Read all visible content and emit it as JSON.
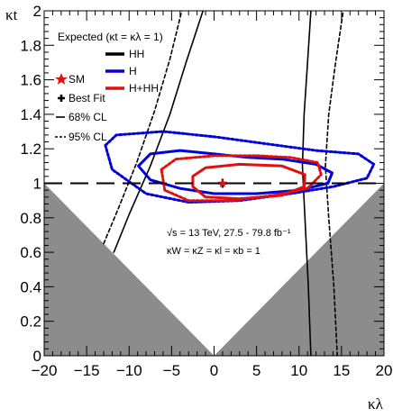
{
  "chart_data": {
    "type": "contour",
    "title": "",
    "xlabel": "κλ",
    "ylabel": "κt",
    "xlim": [
      -20,
      20
    ],
    "ylim": [
      0,
      2
    ],
    "x_ticks": [
      -20,
      -15,
      -10,
      -5,
      0,
      5,
      10,
      15,
      20
    ],
    "y_ticks": [
      0,
      0.2,
      0.4,
      0.6,
      0.8,
      1,
      1.2,
      1.4,
      1.6,
      1.8,
      2
    ],
    "x_tick_labels": [
      "−20",
      "−15",
      "−10",
      "−5",
      "0",
      "5",
      "10",
      "15",
      "20"
    ],
    "y_tick_labels": [
      "0",
      "0.2",
      "0.4",
      "0.6",
      "0.8",
      "1",
      "1.2",
      "1.4",
      "1.6",
      "1.8",
      "2"
    ],
    "reference_line_y": 1,
    "sm_point": {
      "x": 1,
      "y": 1
    },
    "best_fit_point": {
      "x": 1,
      "y": 1
    },
    "excluded_region": "κt < |κλ|/20 (grey)",
    "series": [
      {
        "name": "HH",
        "color": "#000000",
        "cl68": [
          {
            "branch": "left",
            "points": [
              [
                -11.8,
                0.6
              ],
              [
                -10,
                0.82
              ],
              [
                -7.5,
                1.1
              ],
              [
                -5.2,
                1.4
              ],
              [
                -3.3,
                1.7
              ],
              [
                -1.3,
                2.0
              ]
            ]
          },
          {
            "branch": "right",
            "points": [
              [
                11.4,
                0.0
              ],
              [
                11.1,
                0.4
              ],
              [
                10.7,
                0.8
              ],
              [
                10.4,
                1.1
              ],
              [
                10.6,
                1.4
              ],
              [
                11.0,
                1.7
              ],
              [
                11.4,
                2.0
              ]
            ]
          }
        ],
        "cl95": [
          {
            "branch": "left",
            "points": [
              [
                -13.0,
                0.65
              ],
              [
                -11.3,
                0.85
              ],
              [
                -9.1,
                1.12
              ],
              [
                -7.0,
                1.42
              ],
              [
                -5.2,
                1.72
              ],
              [
                -3.8,
                2.0
              ]
            ]
          },
          {
            "branch": "right",
            "points": [
              [
                14.5,
                0.0
              ],
              [
                14.1,
                0.4
              ],
              [
                13.5,
                0.8
              ],
              [
                13.1,
                1.1
              ],
              [
                13.5,
                1.4
              ],
              [
                14.3,
                1.7
              ],
              [
                15.2,
                2.0
              ]
            ]
          }
        ]
      },
      {
        "name": "H",
        "color": "#0000dd",
        "cl68": [
          [
            -8.9,
            1.1
          ],
          [
            -7.5,
            1.17
          ],
          [
            -4,
            1.19
          ],
          [
            0,
            1.17
          ],
          [
            4,
            1.15
          ],
          [
            8,
            1.14
          ],
          [
            12,
            1.11
          ],
          [
            13.9,
            1.06
          ],
          [
            13.4,
            1.0
          ],
          [
            10,
            0.96
          ],
          [
            5,
            0.94
          ],
          [
            0,
            0.94
          ],
          [
            -4,
            0.97
          ],
          [
            -7.5,
            1.02
          ],
          [
            -8.9,
            1.1
          ]
        ],
        "cl95": [
          [
            -12.8,
            1.22
          ],
          [
            -11.5,
            1.28
          ],
          [
            -6,
            1.3
          ],
          [
            0,
            1.27
          ],
          [
            6,
            1.23
          ],
          [
            12,
            1.19
          ],
          [
            17,
            1.17
          ],
          [
            18.8,
            1.11
          ],
          [
            18,
            1.03
          ],
          [
            14,
            0.98
          ],
          [
            9,
            0.94
          ],
          [
            3,
            0.9
          ],
          [
            -3,
            0.89
          ],
          [
            -8,
            0.94
          ],
          [
            -12,
            1.08
          ],
          [
            -12.8,
            1.22
          ]
        ]
      },
      {
        "name": "H+HH",
        "color": "#e01010",
        "cl68": [
          [
            -2.5,
            1.04
          ],
          [
            -1,
            1.09
          ],
          [
            3,
            1.11
          ],
          [
            8,
            1.1
          ],
          [
            10.7,
            1.05
          ],
          [
            10.6,
            0.98
          ],
          [
            8,
            0.93
          ],
          [
            3,
            0.91
          ],
          [
            -1,
            0.92
          ],
          [
            -2.5,
            0.98
          ],
          [
            -2.5,
            1.04
          ]
        ],
        "cl95": [
          [
            -6.2,
            1.08
          ],
          [
            -4.5,
            1.14
          ],
          [
            0,
            1.16
          ],
          [
            5,
            1.16
          ],
          [
            9,
            1.15
          ],
          [
            12.2,
            1.12
          ],
          [
            12.6,
            1.05
          ],
          [
            11,
            0.97
          ],
          [
            7,
            0.93
          ],
          [
            2,
            0.9
          ],
          [
            -3,
            0.9
          ],
          [
            -5.8,
            0.96
          ],
          [
            -6.2,
            1.08
          ]
        ]
      }
    ],
    "legend": {
      "header": "Expected (κt = κλ = 1)",
      "entries": [
        "HH",
        "H",
        "H+HH"
      ],
      "markers": [
        "SM",
        "Best Fit",
        "68% CL",
        "95% CL"
      ]
    },
    "annotations": [
      "√s = 13 TeV, 27.5 - 79.8 fb⁻¹",
      "κW = κZ = κl = κb = 1"
    ]
  }
}
